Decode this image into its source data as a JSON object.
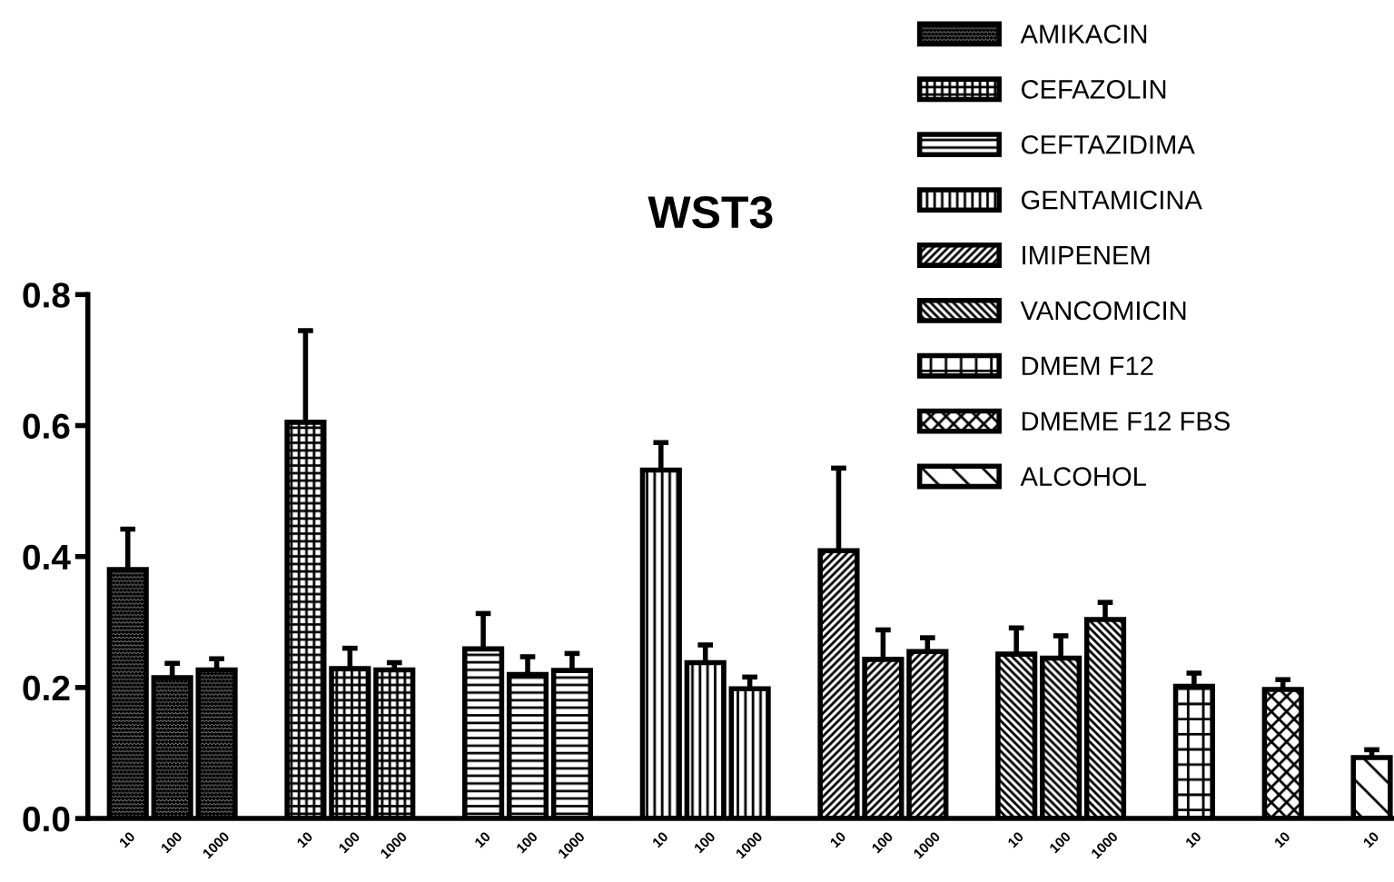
{
  "chart_data": {
    "type": "bar",
    "title": "WST3",
    "categories": [
      "10",
      "100",
      "1000",
      null,
      "10",
      "100",
      "1000",
      null,
      "10",
      "100",
      "1000",
      null,
      "10",
      "100",
      "1000",
      null,
      "10",
      "100",
      "1000",
      null,
      "10",
      "100",
      "1000",
      null,
      "10",
      null,
      "10",
      null,
      "10"
    ],
    "series": [
      {
        "name": "AMIKACIN",
        "color": "#000000",
        "values": [
          0.38,
          0.215,
          0.227,
          null,
          null,
          null,
          null,
          null,
          null,
          null,
          null,
          null,
          null,
          null,
          null,
          null,
          null,
          null,
          null,
          null,
          null,
          null,
          null,
          null,
          null,
          null,
          null,
          null,
          null
        ],
        "errors": [
          0.062,
          0.022,
          0.017,
          null,
          null,
          null,
          null,
          null,
          null,
          null,
          null,
          null,
          null,
          null,
          null,
          null,
          null,
          null,
          null,
          null,
          null,
          null,
          null,
          null,
          null,
          null,
          null,
          null,
          null
        ]
      },
      {
        "name": "CEFAZOLIN",
        "color": "#000000",
        "values": [
          null,
          null,
          null,
          null,
          0.605,
          0.229,
          0.227,
          null,
          null,
          null,
          null,
          null,
          null,
          null,
          null,
          null,
          null,
          null,
          null,
          null,
          null,
          null,
          null,
          null,
          null,
          null,
          null,
          null,
          null
        ],
        "errors": [
          null,
          null,
          null,
          null,
          0.14,
          0.031,
          0.011,
          null,
          null,
          null,
          null,
          null,
          null,
          null,
          null,
          null,
          null,
          null,
          null,
          null,
          null,
          null,
          null,
          null,
          null,
          null,
          null,
          null,
          null
        ]
      },
      {
        "name": "CEFTAZIDIMA",
        "color": "#000000",
        "values": [
          null,
          null,
          null,
          null,
          null,
          null,
          null,
          null,
          0.259,
          0.22,
          0.226,
          null,
          null,
          null,
          null,
          null,
          null,
          null,
          null,
          null,
          null,
          null,
          null,
          null,
          null,
          null,
          null,
          null,
          null
        ],
        "errors": [
          null,
          null,
          null,
          null,
          null,
          null,
          null,
          null,
          0.054,
          0.027,
          0.026,
          null,
          null,
          null,
          null,
          null,
          null,
          null,
          null,
          null,
          null,
          null,
          null,
          null,
          null,
          null,
          null,
          null,
          null
        ]
      },
      {
        "name": "GENTAMICINA",
        "color": "#000000",
        "values": [
          null,
          null,
          null,
          null,
          null,
          null,
          null,
          null,
          null,
          null,
          null,
          null,
          0.532,
          0.238,
          0.198,
          null,
          null,
          null,
          null,
          null,
          null,
          null,
          null,
          null,
          null,
          null,
          null,
          null,
          null
        ],
        "errors": [
          null,
          null,
          null,
          null,
          null,
          null,
          null,
          null,
          null,
          null,
          null,
          null,
          0.042,
          0.027,
          0.018,
          null,
          null,
          null,
          null,
          null,
          null,
          null,
          null,
          null,
          null,
          null,
          null,
          null,
          null
        ]
      },
      {
        "name": "IMIPENEM",
        "color": "#000000",
        "values": [
          null,
          null,
          null,
          null,
          null,
          null,
          null,
          null,
          null,
          null,
          null,
          null,
          null,
          null,
          null,
          null,
          0.409,
          0.243,
          0.255,
          null,
          null,
          null,
          null,
          null,
          null,
          null,
          null,
          null,
          null
        ],
        "errors": [
          null,
          null,
          null,
          null,
          null,
          null,
          null,
          null,
          null,
          null,
          null,
          null,
          null,
          null,
          null,
          null,
          0.126,
          0.045,
          0.021,
          null,
          null,
          null,
          null,
          null,
          null,
          null,
          null,
          null,
          null
        ]
      },
      {
        "name": "VANCOMICIN",
        "color": "#000000",
        "values": [
          null,
          null,
          null,
          null,
          null,
          null,
          null,
          null,
          null,
          null,
          null,
          null,
          null,
          null,
          null,
          null,
          null,
          null,
          null,
          null,
          0.251,
          0.245,
          0.304,
          null,
          null,
          null,
          null,
          null,
          null
        ],
        "errors": [
          null,
          null,
          null,
          null,
          null,
          null,
          null,
          null,
          null,
          null,
          null,
          null,
          null,
          null,
          null,
          null,
          null,
          null,
          null,
          null,
          0.04,
          0.034,
          0.026,
          null,
          null,
          null,
          null,
          null,
          null
        ]
      },
      {
        "name": "DMEM F12",
        "color": "#000000",
        "values": [
          null,
          null,
          null,
          null,
          null,
          null,
          null,
          null,
          null,
          null,
          null,
          null,
          null,
          null,
          null,
          null,
          null,
          null,
          null,
          null,
          null,
          null,
          null,
          null,
          0.202,
          null,
          null,
          null,
          null
        ],
        "errors": [
          null,
          null,
          null,
          null,
          null,
          null,
          null,
          null,
          null,
          null,
          null,
          null,
          null,
          null,
          null,
          null,
          null,
          null,
          null,
          null,
          null,
          null,
          null,
          null,
          0.02,
          null,
          null,
          null,
          null
        ]
      },
      {
        "name": "DMEME F12 FBS",
        "color": "#000000",
        "values": [
          null,
          null,
          null,
          null,
          null,
          null,
          null,
          null,
          null,
          null,
          null,
          null,
          null,
          null,
          null,
          null,
          null,
          null,
          null,
          null,
          null,
          null,
          null,
          null,
          null,
          null,
          0.197,
          null,
          null
        ],
        "errors": [
          null,
          null,
          null,
          null,
          null,
          null,
          null,
          null,
          null,
          null,
          null,
          null,
          null,
          null,
          null,
          null,
          null,
          null,
          null,
          null,
          null,
          null,
          null,
          null,
          null,
          null,
          0.015,
          null,
          null
        ]
      },
      {
        "name": "ALCOHOL",
        "color": "#000000",
        "values": [
          null,
          null,
          null,
          null,
          null,
          null,
          null,
          null,
          null,
          null,
          null,
          null,
          null,
          null,
          null,
          null,
          null,
          null,
          null,
          null,
          null,
          null,
          null,
          null,
          null,
          null,
          null,
          null,
          0.093
        ],
        "errors": [
          null,
          null,
          null,
          null,
          null,
          null,
          null,
          null,
          null,
          null,
          null,
          null,
          null,
          null,
          null,
          null,
          null,
          null,
          null,
          null,
          null,
          null,
          null,
          null,
          null,
          null,
          null,
          null,
          0.012
        ]
      }
    ],
    "ylim": [
      0,
      0.8
    ],
    "yticks": [
      {
        "value": 0,
        "label": "0.0"
      },
      {
        "value": 0.2,
        "label": "0.2"
      },
      {
        "value": 0.4,
        "label": "0.4"
      },
      {
        "value": 0.6,
        "label": "0.6"
      },
      {
        "value": 0.8,
        "label": "0.8"
      }
    ],
    "grid": false,
    "legend": "top right"
  }
}
